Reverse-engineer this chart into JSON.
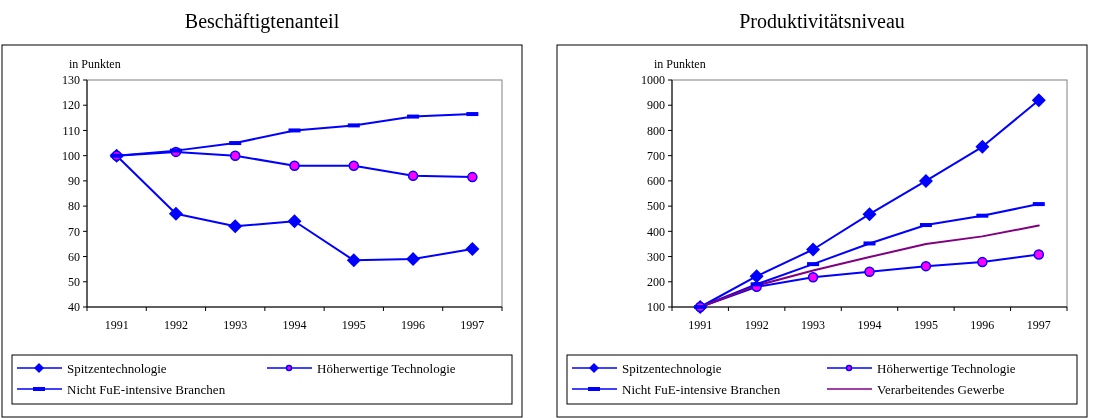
{
  "chart_data": [
    {
      "type": "line",
      "title": "Beschäftigtenanteil",
      "ylabel": "in Punkten",
      "categories": [
        "1991",
        "1992",
        "1993",
        "1994",
        "1995",
        "1996",
        "1997"
      ],
      "ylim": [
        40,
        130
      ],
      "yticks": [
        40,
        50,
        60,
        70,
        80,
        90,
        100,
        110,
        120,
        130
      ],
      "grid": false,
      "legend": "bottom",
      "series": [
        {
          "name": "Spitzentechnologie",
          "color": "#0000ff",
          "marker": "diamond",
          "values": [
            100,
            77,
            72,
            74,
            58.5,
            59,
            63
          ]
        },
        {
          "name": "Höherwertige Technologie",
          "color": "#0000ff",
          "marker": "circle",
          "values": [
            100,
            101.5,
            100,
            96,
            96,
            92,
            91.5
          ]
        },
        {
          "name": "Nicht FuE-intensive Branchen",
          "color": "#0000ff",
          "marker": "square",
          "values": [
            100,
            102,
            105,
            110,
            112,
            115.5,
            116.5
          ]
        }
      ]
    },
    {
      "type": "line",
      "title": "Produktivitätsniveau",
      "ylabel": "in Punkten",
      "categories": [
        "1991",
        "1992",
        "1993",
        "1994",
        "1995",
        "1996",
        "1997"
      ],
      "ylim": [
        100,
        1000
      ],
      "yticks": [
        100,
        200,
        300,
        400,
        500,
        600,
        700,
        800,
        900,
        1000
      ],
      "grid": false,
      "legend": "bottom",
      "series": [
        {
          "name": "Spitzentechnologie",
          "color": "#0000ff",
          "marker": "diamond",
          "values": [
            100,
            222,
            328,
            468,
            600,
            735,
            920
          ]
        },
        {
          "name": "Höherwertige Technologie",
          "color": "#0000ff",
          "marker": "circle",
          "values": [
            100,
            180,
            218,
            240,
            262,
            278,
            308
          ]
        },
        {
          "name": "Nicht FuE-intensive Branchen",
          "color": "#0000ff",
          "marker": "square",
          "values": [
            100,
            190,
            270,
            352,
            425,
            462,
            508
          ]
        },
        {
          "name": "Verarbeitendes Gewerbe",
          "color": "#800080",
          "marker": "none",
          "values": [
            100,
            185,
            245,
            298,
            350,
            380,
            423
          ]
        }
      ]
    }
  ]
}
